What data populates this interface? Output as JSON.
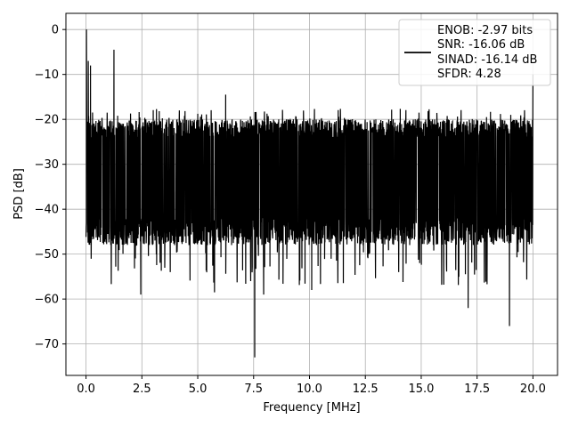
{
  "chart_data": {
    "type": "line",
    "title": "",
    "xlabel": "Frequency [MHz]",
    "ylabel": "PSD [dB]",
    "xlim": [
      -0.9,
      21.1
    ],
    "ylim": [
      -77,
      3.6
    ],
    "xticks": [
      0.0,
      2.5,
      5.0,
      7.5,
      10.0,
      12.5,
      15.0,
      17.5,
      20.0
    ],
    "xtick_labels": [
      "0.0",
      "2.5",
      "5.0",
      "7.5",
      "10.0",
      "12.5",
      "15.0",
      "17.5",
      "20.0"
    ],
    "yticks": [
      0,
      -10,
      -20,
      -30,
      -40,
      -50,
      -60,
      -70
    ],
    "ytick_labels": [
      "0",
      "−10",
      "−20",
      "−30",
      "−40",
      "−50",
      "−60",
      "−70"
    ],
    "grid": true,
    "legend": {
      "placement": "upper-right",
      "lines": [
        "ENOB: -2.97 bits",
        "SNR: -16.06 dB",
        "SINAD: -16.14 dB",
        "SFDR: 4.28"
      ]
    },
    "series": [
      {
        "color": "#000000",
        "noise_band": {
          "upper_db": -22,
          "lower_db": -45,
          "center_db": -31,
          "x_start": 0.0,
          "x_end": 20.0
        },
        "peaks": [
          {
            "x": 0.02,
            "y": 0
          },
          {
            "x": 0.1,
            "y": -7
          },
          {
            "x": 0.2,
            "y": -8
          },
          {
            "x": 1.25,
            "y": -4.5
          },
          {
            "x": 6.25,
            "y": -14.5
          },
          {
            "x": 20.0,
            "y": -10
          }
        ],
        "dips": [
          {
            "x": 2.45,
            "y": -59
          },
          {
            "x": 5.75,
            "y": -58.5
          },
          {
            "x": 7.55,
            "y": -73
          },
          {
            "x": 7.95,
            "y": -59
          },
          {
            "x": 10.1,
            "y": -58
          },
          {
            "x": 17.1,
            "y": -62
          },
          {
            "x": 18.95,
            "y": -66
          }
        ]
      }
    ]
  }
}
